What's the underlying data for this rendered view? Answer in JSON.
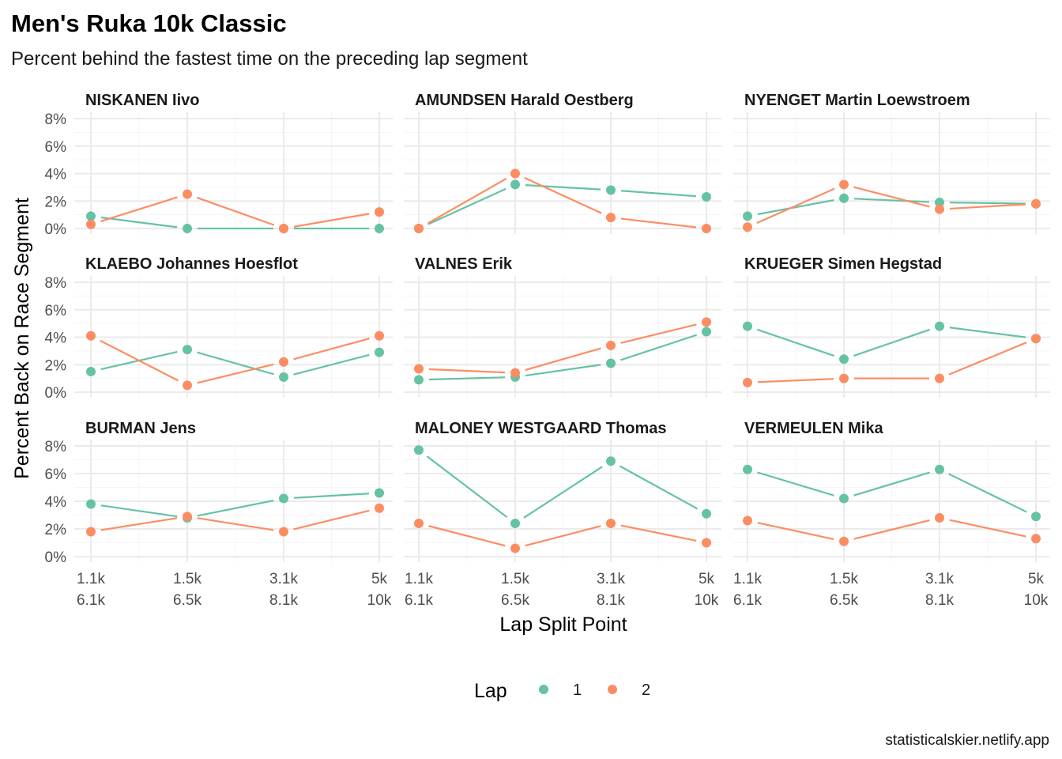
{
  "title": "Men's Ruka 10k Classic",
  "subtitle": "Percent behind the fastest time on the preceding lap segment",
  "caption": "statisticalskier.netlify.app",
  "colors": {
    "lap1": "#66C2A5",
    "lap2": "#FC8D62",
    "grid_major": "#EBEBEB",
    "grid_minor": "#F5F5F5"
  },
  "chart_data": {
    "type": "line",
    "xlabel": "Lap Split Point",
    "ylabel": "Percent Back on Race Segment",
    "x_tick_labels": [
      [
        "1.1k",
        "6.1k"
      ],
      [
        "1.5k",
        "6.5k"
      ],
      [
        "3.1k",
        "8.1k"
      ],
      [
        "5k",
        "10k"
      ]
    ],
    "y_ticks": [
      "0%",
      "2%",
      "4%",
      "6%",
      "8%"
    ],
    "ylim": [
      0,
      8
    ],
    "grid": true,
    "legend": {
      "title": "Lap",
      "position": "bottom",
      "entries": [
        "1",
        "2"
      ]
    },
    "panels": [
      {
        "name": "NISKANEN Iivo",
        "series": [
          {
            "name": "1",
            "values": [
              0.9,
              0.0,
              0.0,
              0.0
            ]
          },
          {
            "name": "2",
            "values": [
              0.3,
              2.5,
              0.0,
              1.2
            ]
          }
        ]
      },
      {
        "name": "AMUNDSEN Harald Oestberg",
        "series": [
          {
            "name": "1",
            "values": [
              0.0,
              3.2,
              2.8,
              2.3
            ]
          },
          {
            "name": "2",
            "values": [
              0.0,
              4.0,
              0.8,
              0.0
            ]
          }
        ]
      },
      {
        "name": "NYENGET Martin Loewstroem",
        "series": [
          {
            "name": "1",
            "values": [
              0.9,
              2.2,
              1.9,
              1.8
            ]
          },
          {
            "name": "2",
            "values": [
              0.1,
              3.2,
              1.4,
              1.8
            ]
          }
        ]
      },
      {
        "name": "KLAEBO Johannes Hoesflot",
        "series": [
          {
            "name": "1",
            "values": [
              1.5,
              3.1,
              1.1,
              2.9
            ]
          },
          {
            "name": "2",
            "values": [
              4.1,
              0.5,
              2.2,
              4.1
            ]
          }
        ]
      },
      {
        "name": "VALNES Erik",
        "series": [
          {
            "name": "1",
            "values": [
              0.9,
              1.1,
              2.1,
              4.4
            ]
          },
          {
            "name": "2",
            "values": [
              1.7,
              1.4,
              3.4,
              5.1
            ]
          }
        ]
      },
      {
        "name": "KRUEGER Simen Hegstad",
        "series": [
          {
            "name": "1",
            "values": [
              4.8,
              2.4,
              4.8,
              3.9
            ]
          },
          {
            "name": "2",
            "values": [
              0.7,
              1.0,
              1.0,
              3.9
            ]
          }
        ]
      },
      {
        "name": "BURMAN Jens",
        "series": [
          {
            "name": "1",
            "values": [
              3.8,
              2.8,
              4.2,
              4.6
            ]
          },
          {
            "name": "2",
            "values": [
              1.8,
              2.9,
              1.8,
              3.5
            ]
          }
        ]
      },
      {
        "name": "MALONEY WESTGAARD Thomas",
        "series": [
          {
            "name": "1",
            "values": [
              7.7,
              2.4,
              6.9,
              3.1
            ]
          },
          {
            "name": "2",
            "values": [
              2.4,
              0.6,
              2.4,
              1.0
            ]
          }
        ]
      },
      {
        "name": "VERMEULEN Mika",
        "series": [
          {
            "name": "1",
            "values": [
              6.3,
              4.2,
              6.3,
              2.9
            ]
          },
          {
            "name": "2",
            "values": [
              2.6,
              1.1,
              2.8,
              1.3
            ]
          }
        ]
      }
    ]
  }
}
